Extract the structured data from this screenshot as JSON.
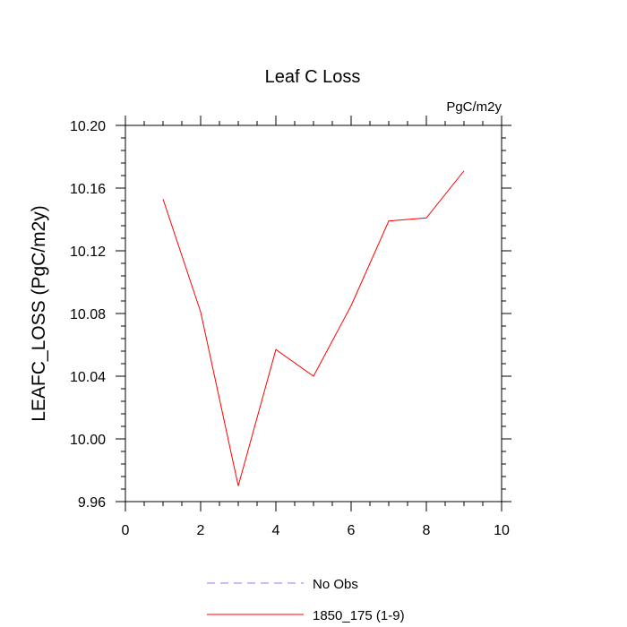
{
  "chart_data": {
    "type": "line",
    "title": "Leaf C Loss",
    "units_label": "PgC/m2y",
    "xlabel": "",
    "ylabel": "LEAFC_LOSS  (PgC/m2y)",
    "xlim": [
      0,
      10
    ],
    "ylim": [
      9.96,
      10.2
    ],
    "x_ticks": [
      0,
      2,
      4,
      6,
      8,
      10
    ],
    "x_tick_labels": [
      "0",
      "2",
      "4",
      "6",
      "8",
      "10"
    ],
    "y_ticks": [
      9.96,
      10.0,
      10.04,
      10.08,
      10.12,
      10.16,
      10.2
    ],
    "y_tick_labels": [
      "9.96",
      "10.00",
      "10.04",
      "10.08",
      "10.12",
      "10.16",
      "10.20"
    ],
    "grid": false,
    "series": [
      {
        "name": "1850_175 (1-9)",
        "color": "#ff0000",
        "style": "solid",
        "x": [
          1,
          2,
          3,
          4,
          5,
          6,
          7,
          8,
          9
        ],
        "y": [
          10.153,
          10.081,
          9.97,
          10.057,
          10.04,
          10.085,
          10.139,
          10.141,
          10.171
        ]
      }
    ],
    "legend": [
      {
        "label": "No Obs",
        "color": "#8080ff",
        "style": "dashed"
      },
      {
        "label": "1850_175 (1-9)",
        "color": "#ff0000",
        "style": "solid"
      }
    ],
    "legend_position": "bottom-center"
  }
}
